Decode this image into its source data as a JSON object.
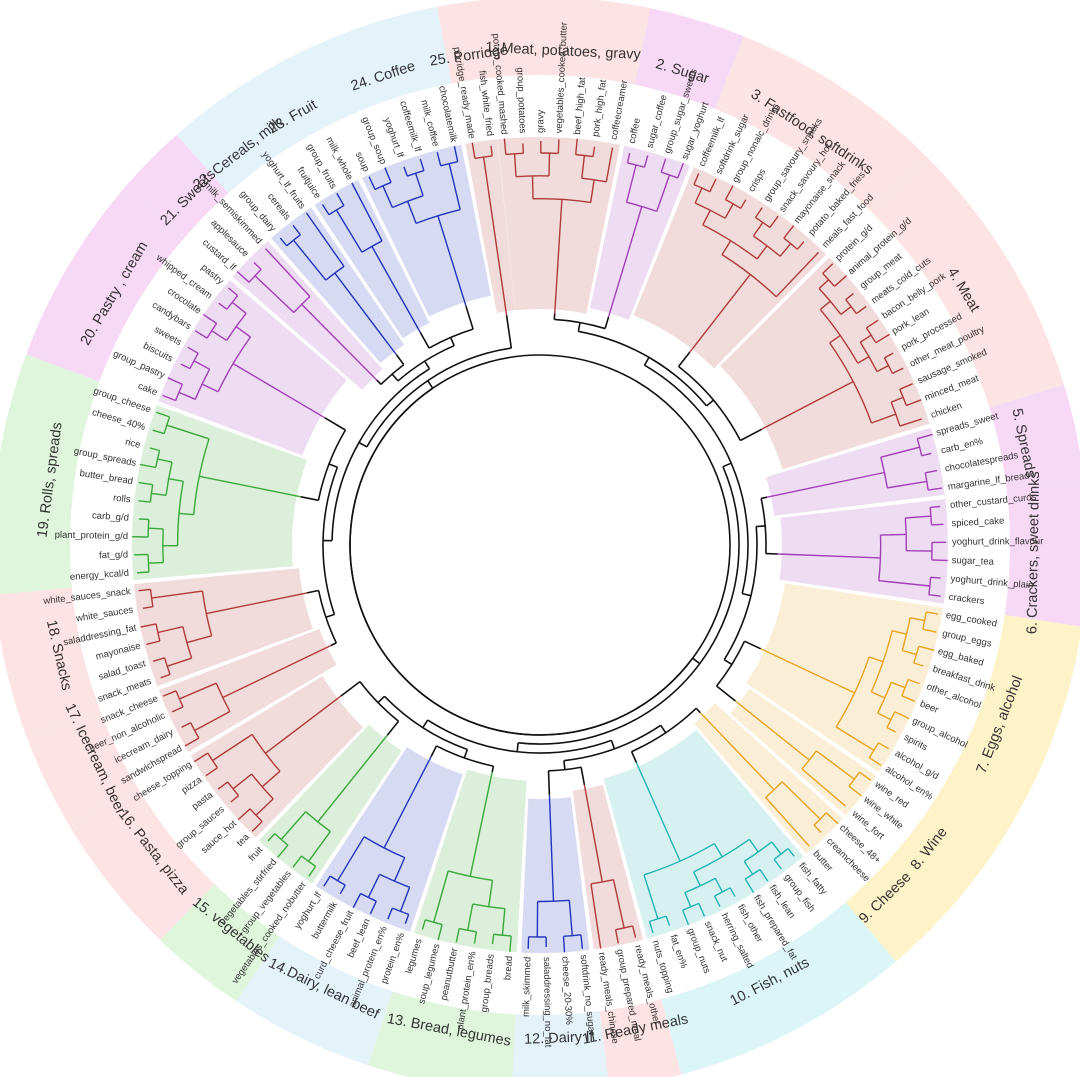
{
  "diagram": {
    "clusters": [
      {
        "label": "1. Meat, potatoes, gravy",
        "color": "#b03a3a",
        "band": "#fde3e3",
        "leaves": [
          "potato_cooked_mashed",
          "group_potatoes",
          "gravy",
          "vegetables_cooked_butter",
          "beef_high_fat",
          "pork_high_fat",
          "coffeecreamer"
        ]
      },
      {
        "label": "2. Sugar",
        "color": "#a23fb7",
        "band": "#f7d8f5",
        "leaves": [
          "coffee",
          "sugar_coffee",
          "group_sugar_sweets",
          "sugar_yoghurt"
        ]
      },
      {
        "label": "3. Fastfood, softdrinks",
        "color": "#b03a3a",
        "band": "#fde3e3",
        "leaves": [
          "coffeemilk_lf",
          "softdrink_sugar",
          "group_nonalc_drinks",
          "crisps",
          "group_savoury_snacks",
          "snack_savoury_hot",
          "mayonaise_snack",
          "potato_baked_fries",
          "meals_fast_food"
        ]
      },
      {
        "label": "4. Meat",
        "color": "#b03a3a",
        "band": "#fde3e3",
        "leaves": [
          "protein_g/d",
          "animal_protein_g/d",
          "group_meat",
          "meats_cold_cuts",
          "bacon_belly_pork",
          "pork_lean",
          "pork_processed",
          "other_meat_poultry",
          "sausage_smoked",
          "minced_meat",
          "chicken"
        ]
      },
      {
        "label": "5. Spreads",
        "color": "#a23fb7",
        "band": "#f7d8f5",
        "leaves": [
          "spreads_sweet",
          "carb_en%",
          "chocolatespreads",
          "margarine_lf_bread"
        ]
      },
      {
        "label": "6. Crackers, sweet drinks",
        "color": "#a23fb7",
        "band": "#f7d8f5",
        "leaves": [
          "other_custard_curds",
          "spiced_cake",
          "yoghurt_drink_flavour",
          "sugar_tea",
          "yoghurt_drink_plain",
          "crackers"
        ]
      },
      {
        "label": "7. Eggs, alcohol",
        "color": "#e9a21c",
        "band": "#fdf2c8",
        "leaves": [
          "egg_cooked",
          "group_eggs",
          "egg_baked",
          "breakfast_drink",
          "other_alcohol",
          "beer",
          "group_alcohol",
          "spirits",
          "alcohol_g/d",
          "alcohol_en%"
        ]
      },
      {
        "label": "8. Wine",
        "color": "#e9a21c",
        "band": "#fdf2c8",
        "leaves": [
          "wine_red",
          "wine_white",
          "wine_fort"
        ]
      },
      {
        "label": "9. Cheese",
        "color": "#e9a21c",
        "band": "#fdf2c8",
        "leaves": [
          "cheese_48+",
          "creamcheese",
          "butter"
        ]
      },
      {
        "label": "10. Fish, nuts",
        "color": "#1fb3b3",
        "band": "#dcf6f8",
        "leaves": [
          "fish_fatty",
          "group_fish",
          "fish_lean",
          "fish_prepared_fat",
          "fish_other",
          "herring_salted",
          "snack_nut",
          "group_nuts",
          "fat_en%",
          "nuts_topping"
        ]
      },
      {
        "label": "11. Ready meals",
        "color": "#b03a3a",
        "band": "#fde3e3",
        "leaves": [
          "ready_meals_other",
          "group_prepared_meal",
          "ready_meals_chinese"
        ]
      },
      {
        "label": "12. Dairy lf",
        "color": "#2233bb",
        "band": "#e4f2fa",
        "leaves": [
          "softdrink_no_sugar",
          "cheese_20-30%",
          "saladdressing_no_fat",
          "milk_skimmed"
        ]
      },
      {
        "label": "13. Bread, legumes",
        "color": "#3aa83a",
        "band": "#dff5dc",
        "leaves": [
          "bread",
          "group_breads",
          "plant_protein_en%",
          "peanutbutter",
          "soup_legumes",
          "legumes"
        ]
      },
      {
        "label": "14.Dairy, lean beef",
        "color": "#2233bb",
        "band": "#e4f2fa",
        "leaves": [
          "protein_en%",
          "animal_protein_en%",
          "beef_lean",
          "curd_cheese_fruit",
          "buttermilk",
          "yoghurt_lf"
        ]
      },
      {
        "label": "15. vegetables",
        "color": "#3aa83a",
        "band": "#dff5dc",
        "leaves": [
          "vegetables_cooked_nobutter",
          "group_vegetables",
          "vegetables_stirfried",
          "fruit"
        ]
      },
      {
        "label": "16. Pasta, pizza",
        "color": "#b03a3a",
        "band": "#fde3e3",
        "leaves": [
          "tea",
          "sauce_hot",
          "group_sauces",
          "pasta",
          "pizza",
          "cheese_topping"
        ]
      },
      {
        "label": "17. Icecream, beer",
        "color": "#b03a3a",
        "band": "#fde3e3",
        "leaves": [
          "sandwichspread",
          "icecream_dairy",
          "beer_non_alcoholic",
          "snack_cheese"
        ]
      },
      {
        "label": "18. Snacks",
        "color": "#b03a3a",
        "band": "#fde3e3",
        "leaves": [
          "snack_meats",
          "salad_toast",
          "mayonaise",
          "saladdressing_fat",
          "white_sauces",
          "white_sauces_snack"
        ]
      },
      {
        "label": "19. Rolls, spreads",
        "color": "#3aa83a",
        "band": "#dff5dc",
        "leaves": [
          "energy_kcal/d",
          "fat_g/d",
          "plant_protein_g/d",
          "carb_g/d",
          "rolls",
          "butter_bread",
          "group_spreads",
          "rice",
          "cheese_40%",
          "group_cheese"
        ]
      },
      {
        "label": "20. Pastry , cream",
        "color": "#a23fb7",
        "band": "#f7d8f5",
        "leaves": [
          "cake",
          "group_pastry",
          "biscuits",
          "sweets",
          "candybars",
          "crocolate",
          "whipped_cream",
          "pastry"
        ]
      },
      {
        "label": "21. Sweets",
        "color": "#a23fb7",
        "band": "#f7d8f5",
        "leaves": [
          "custard_lf",
          "applesauce",
          "milk_semiskimmed"
        ]
      },
      {
        "label": "22. Cereals, milk",
        "color": "#2233bb",
        "band": "#e4f2fa",
        "leaves": [
          "group_dairy",
          "cereals",
          "yoghurt_lf_fruits"
        ]
      },
      {
        "label": "23. Fruit",
        "color": "#2233bb",
        "band": "#e4f2fa",
        "leaves": [
          "fruitjuice",
          "group_fruits",
          "milk_whole"
        ]
      },
      {
        "label": "24. Coffee",
        "color": "#2233bb",
        "band": "#e4f2fa",
        "leaves": [
          "soup",
          "group_soup",
          "yoghurt_lf",
          "coffeemilk_lf",
          "milk_coffee",
          "chocolatemilk"
        ]
      },
      {
        "label": "25. Porridge",
        "color": "#b03a3a",
        "band": "#fde3e3",
        "leaves": [
          "porridge_ready_made",
          "fish_white_fried"
        ]
      }
    ]
  }
}
